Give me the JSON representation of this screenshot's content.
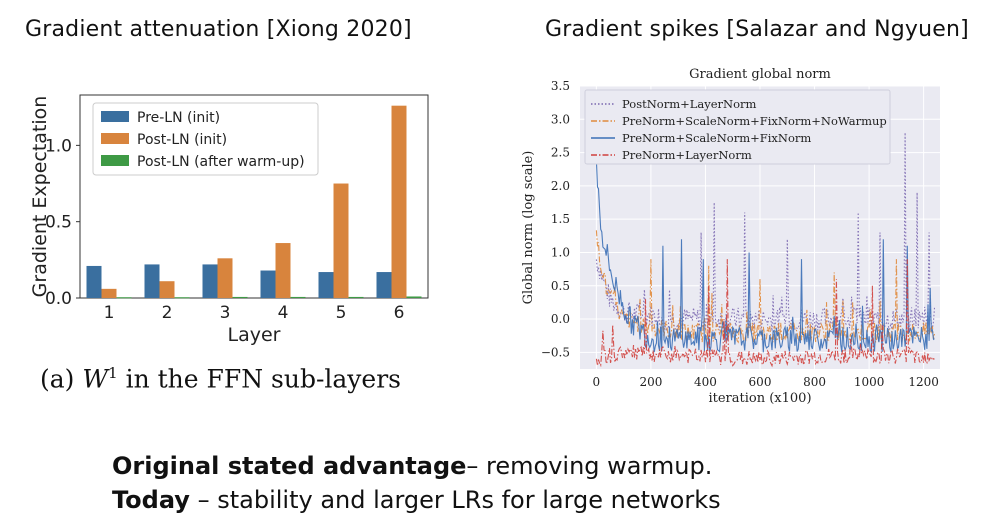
{
  "slide": {
    "left_heading": "Gradient attenuation [Xiong 2020]",
    "right_heading": "Gradient spikes [Salazar and Ngyuen]",
    "caption_prefix": "(a)",
    "caption_var": "W",
    "caption_sup": "1",
    "caption_suffix": "in the FFN sub-layers",
    "bottom": {
      "line1_bold": "Original stated advantage",
      "line1_rest": "– removing warmup.",
      "line2_bold": "Today",
      "line2_rest": " – stability and larger LRs for large networks"
    }
  },
  "chart_data": [
    {
      "type": "bar",
      "title": "",
      "xlabel": "Layer",
      "ylabel": "Gradient Expectation",
      "categories": [
        "1",
        "2",
        "3",
        "4",
        "5",
        "6"
      ],
      "ylim": [
        0,
        1.33
      ],
      "yticks": [
        "0.0",
        "0.5",
        "1.0"
      ],
      "legend_position": "top-left",
      "series": [
        {
          "name": "Pre-LN (init)",
          "color": "#3a6f9f",
          "values": [
            0.21,
            0.22,
            0.22,
            0.18,
            0.17,
            0.17
          ]
        },
        {
          "name": "Post-LN (init)",
          "color": "#d8843d",
          "values": [
            0.06,
            0.11,
            0.26,
            0.36,
            0.75,
            1.26
          ]
        },
        {
          "name": "Post-LN (after warm-up)",
          "color": "#3e9a45",
          "values": [
            0.005,
            0.005,
            0.007,
            0.007,
            0.007,
            0.01
          ]
        }
      ]
    },
    {
      "type": "line",
      "title": "Gradient global norm",
      "xlabel": "iteration (x100)",
      "ylabel": "Global norm (log scale)",
      "xlim": [
        -60,
        1260
      ],
      "ylim": [
        -0.75,
        3.5
      ],
      "xticks": [
        "0",
        "200",
        "400",
        "600",
        "800",
        "1000",
        "1200"
      ],
      "yticks": [
        "−0.5",
        "0.0",
        "0.5",
        "1.0",
        "1.5",
        "2.0",
        "2.5",
        "3.0",
        "3.5"
      ],
      "legend_position": "top-left",
      "series": [
        {
          "name": "PostNorm+LayerNorm",
          "color": "#7b68b0",
          "style": "dotted",
          "approx": "starts near 1.0, fluctuates around 0.0 with spikes up to 2.8",
          "points": [
            [
              0,
              0.9
            ],
            [
              50,
              0.3
            ],
            [
              100,
              0.1
            ],
            [
              300,
              0.0
            ],
            [
              600,
              0.0
            ],
            [
              900,
              0.0
            ],
            [
              1240,
              0.0
            ]
          ],
          "spikes": [
            [
              385,
              1.3
            ],
            [
              430,
              1.75
            ],
            [
              545,
              1.6
            ],
            [
              700,
              1.2
            ],
            [
              960,
              1.6
            ],
            [
              1040,
              1.3
            ],
            [
              1130,
              2.8
            ],
            [
              1175,
              1.9
            ],
            [
              1220,
              1.3
            ]
          ]
        },
        {
          "name": "PreNorm+ScaleNorm+FixNorm+NoWarmup",
          "color": "#e08a3c",
          "style": "dashdot",
          "approx": "starts near 1.2, settles around -0.2",
          "points": [
            [
              0,
              1.2
            ],
            [
              40,
              0.4
            ],
            [
              100,
              0.0
            ],
            [
              300,
              -0.2
            ],
            [
              600,
              -0.2
            ],
            [
              900,
              -0.2
            ],
            [
              1240,
              -0.2
            ]
          ],
          "spikes": [
            [
              200,
              0.9
            ],
            [
              410,
              0.8
            ],
            [
              600,
              0.6
            ],
            [
              870,
              0.7
            ],
            [
              1100,
              0.9
            ]
          ]
        },
        {
          "name": "PreNorm+ScaleNorm+FixNorm",
          "color": "#3b6fb6",
          "style": "solid",
          "approx": "spike to 2.3 at start, decays to around -0.3",
          "points": [
            [
              0,
              2.3
            ],
            [
              20,
              1.3
            ],
            [
              60,
              0.6
            ],
            [
              120,
              0.0
            ],
            [
              200,
              -0.3
            ],
            [
              600,
              -0.3
            ],
            [
              900,
              -0.3
            ],
            [
              1240,
              -0.3
            ]
          ],
          "spikes": [
            [
              245,
              1.1
            ],
            [
              310,
              1.2
            ],
            [
              390,
              0.9
            ],
            [
              560,
              1.0
            ],
            [
              750,
              0.9
            ],
            [
              1050,
              1.2
            ],
            [
              1140,
              1.1
            ]
          ]
        },
        {
          "name": "PreNorm+LayerNorm",
          "color": "#d0403c",
          "style": "dashdot",
          "approx": "starts near -0.6, stays around -0.55",
          "points": [
            [
              0,
              -0.6
            ],
            [
              100,
              -0.5
            ],
            [
              300,
              -0.55
            ],
            [
              600,
              -0.6
            ],
            [
              900,
              -0.55
            ],
            [
              1240,
              -0.55
            ]
          ],
          "spikes": [
            [
              180,
              0.3
            ],
            [
              410,
              0.5
            ],
            [
              480,
              0.9
            ],
            [
              880,
              0.6
            ],
            [
              1010,
              0.5
            ],
            [
              1140,
              0.9
            ]
          ]
        }
      ]
    }
  ]
}
